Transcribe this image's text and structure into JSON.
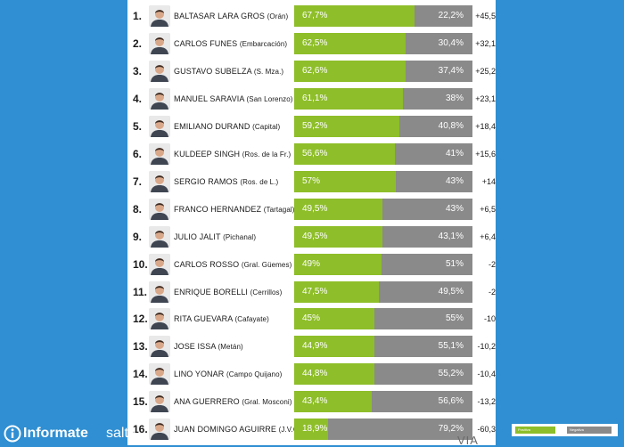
{
  "colors": {
    "background": "#2f8fd2",
    "positive": "#8ebe29",
    "negative": "#8a8a8a"
  },
  "chart_data": {
    "type": "bar",
    "stacked": true,
    "orientation": "horizontal",
    "categories": [
      "BALTASAR LARA GROS (Orán)",
      "CARLOS FUNES (Embarcación)",
      "GUSTAVO SUBELZA (S. Mza.)",
      "MANUEL SARAVIA (San Lorenzo)",
      "EMILIANO DURAND (Capital)",
      "KULDEEP SINGH (Ros. de la Fr.)",
      "SERGIO RAMOS (Ros. de L.)",
      "FRANCO HERNANDEZ (Tartagal)",
      "JULIO JALIT (Pichanal)",
      "CARLOS ROSSO (Gral. Güemes)",
      "ENRIQUE BORELLI (Cerrillos)",
      "RITA GUEVARA (Cafayate)",
      "JOSE ISSA (Metán)",
      "LINO YONAR (Campo Quijano)",
      "ANA GUERRERO (Gral. Mosconi)",
      "JUAN DOMINGO AGUIRRE (J.V.G.)"
    ],
    "series": [
      {
        "name": "Positiva",
        "values": [
          67.7,
          62.5,
          62.6,
          61.1,
          59.2,
          56.6,
          57,
          49.5,
          49.5,
          49,
          47.5,
          45,
          44.9,
          44.8,
          43.4,
          18.9
        ]
      },
      {
        "name": "Negativa",
        "values": [
          22.2,
          30.4,
          37.4,
          38,
          40.8,
          41,
          43,
          43,
          43.1,
          51,
          49.5,
          55,
          55.1,
          55.2,
          56.6,
          79.2
        ]
      }
    ],
    "xlim": [
      0,
      100
    ]
  },
  "rows": [
    {
      "rank": "1.",
      "name": "BALTASAR LARA GROS",
      "place": "(Orán)",
      "positive_label": "67,7%",
      "negative_label": "22,2%",
      "diff": "+45,5"
    },
    {
      "rank": "2.",
      "name": "CARLOS FUNES",
      "place": "(Embarcación)",
      "positive_label": "62,5%",
      "negative_label": "30,4%",
      "diff": "+32,1"
    },
    {
      "rank": "3.",
      "name": "GUSTAVO SUBELZA",
      "place": "(S. Mza.)",
      "positive_label": "62,6%",
      "negative_label": "37,4%",
      "diff": "+25,2"
    },
    {
      "rank": "4.",
      "name": "MANUEL SARAVIA",
      "place": "(San Lorenzo)",
      "positive_label": "61,1%",
      "negative_label": "38%",
      "diff": "+23,1"
    },
    {
      "rank": "5.",
      "name": "EMILIANO DURAND",
      "place": "(Capital)",
      "positive_label": "59,2%",
      "negative_label": "40,8%",
      "diff": "+18,4"
    },
    {
      "rank": "6.",
      "name": "KULDEEP SINGH",
      "place": "(Ros. de la Fr.)",
      "positive_label": "56,6%",
      "negative_label": "41%",
      "diff": "+15,6"
    },
    {
      "rank": "7.",
      "name": "SERGIO RAMOS",
      "place": "(Ros. de L.)",
      "positive_label": "57%",
      "negative_label": "43%",
      "diff": "+14"
    },
    {
      "rank": "8.",
      "name": "FRANCO HERNANDEZ",
      "place": "(Tartagal)",
      "positive_label": "49,5%",
      "negative_label": "43%",
      "diff": "+6,5"
    },
    {
      "rank": "9.",
      "name": "JULIO JALIT",
      "place": "(Pichanal)",
      "positive_label": "49,5%",
      "negative_label": "43,1%",
      "diff": "+6,4"
    },
    {
      "rank": "10.",
      "name": "CARLOS ROSSO",
      "place": "(Gral. Güemes)",
      "positive_label": "49%",
      "negative_label": "51%",
      "diff": "-2"
    },
    {
      "rank": "11.",
      "name": "ENRIQUE BORELLI",
      "place": "(Cerrillos)",
      "positive_label": "47,5%",
      "negative_label": "49,5%",
      "diff": "-2"
    },
    {
      "rank": "12.",
      "name": "RITA GUEVARA",
      "place": "(Cafayate)",
      "positive_label": "45%",
      "negative_label": "55%",
      "diff": "-10"
    },
    {
      "rank": "13.",
      "name": "JOSE ISSA",
      "place": "(Metán)",
      "positive_label": "44,9%",
      "negative_label": "55,1%",
      "diff": "-10,2"
    },
    {
      "rank": "14.",
      "name": "LINO YONAR",
      "place": "(Campo Quijano)",
      "positive_label": "44,8%",
      "negative_label": "55,2%",
      "diff": "-10,4"
    },
    {
      "rank": "15.",
      "name": "ANA GUERRERO",
      "place": "(Gral. Mosconi)",
      "positive_label": "43,4%",
      "negative_label": "56,6%",
      "diff": "-13,2"
    },
    {
      "rank": "16.",
      "name": "JUAN DOMINGO AGUIRRE",
      "place": "(J.V.G.)",
      "positive_label": "18,9%",
      "negative_label": "79,2%",
      "diff": "-60,3"
    }
  ],
  "branding": {
    "logo_bold": "Informate",
    "logo_light": "salta",
    "source": "VIA"
  },
  "legend": {
    "positive": "Positiva",
    "negative": "Negativa"
  }
}
